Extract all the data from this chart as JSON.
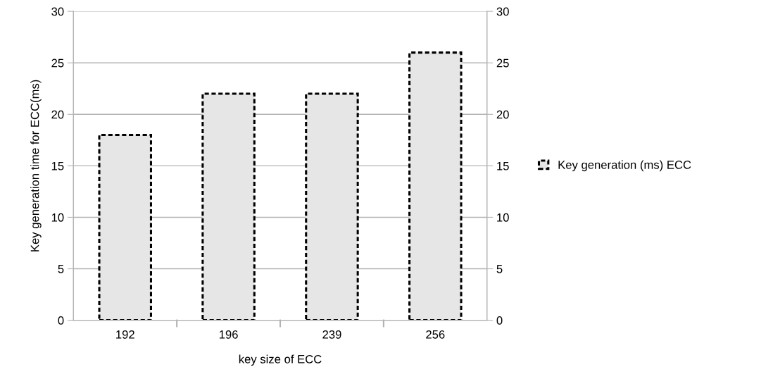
{
  "chart_data": {
    "type": "bar",
    "xlabel": "key size of ECC",
    "ylabel": "Key generation time for ECC(ms)",
    "categories": [
      "192",
      "196",
      "239",
      "256"
    ],
    "series": [
      {
        "name": "Key generation (ms) ECC",
        "color": "#e6e6e6",
        "values": [
          18,
          22,
          22,
          26
        ]
      }
    ],
    "ylim": [
      0,
      30
    ],
    "yticks": [
      0,
      5,
      10,
      15,
      20,
      25,
      30
    ],
    "y2lim": [
      0,
      30
    ],
    "y2ticks": [
      0,
      5,
      10,
      15,
      20,
      25,
      30
    ],
    "grid": "y",
    "legend": "right",
    "line_style": "dashed"
  }
}
